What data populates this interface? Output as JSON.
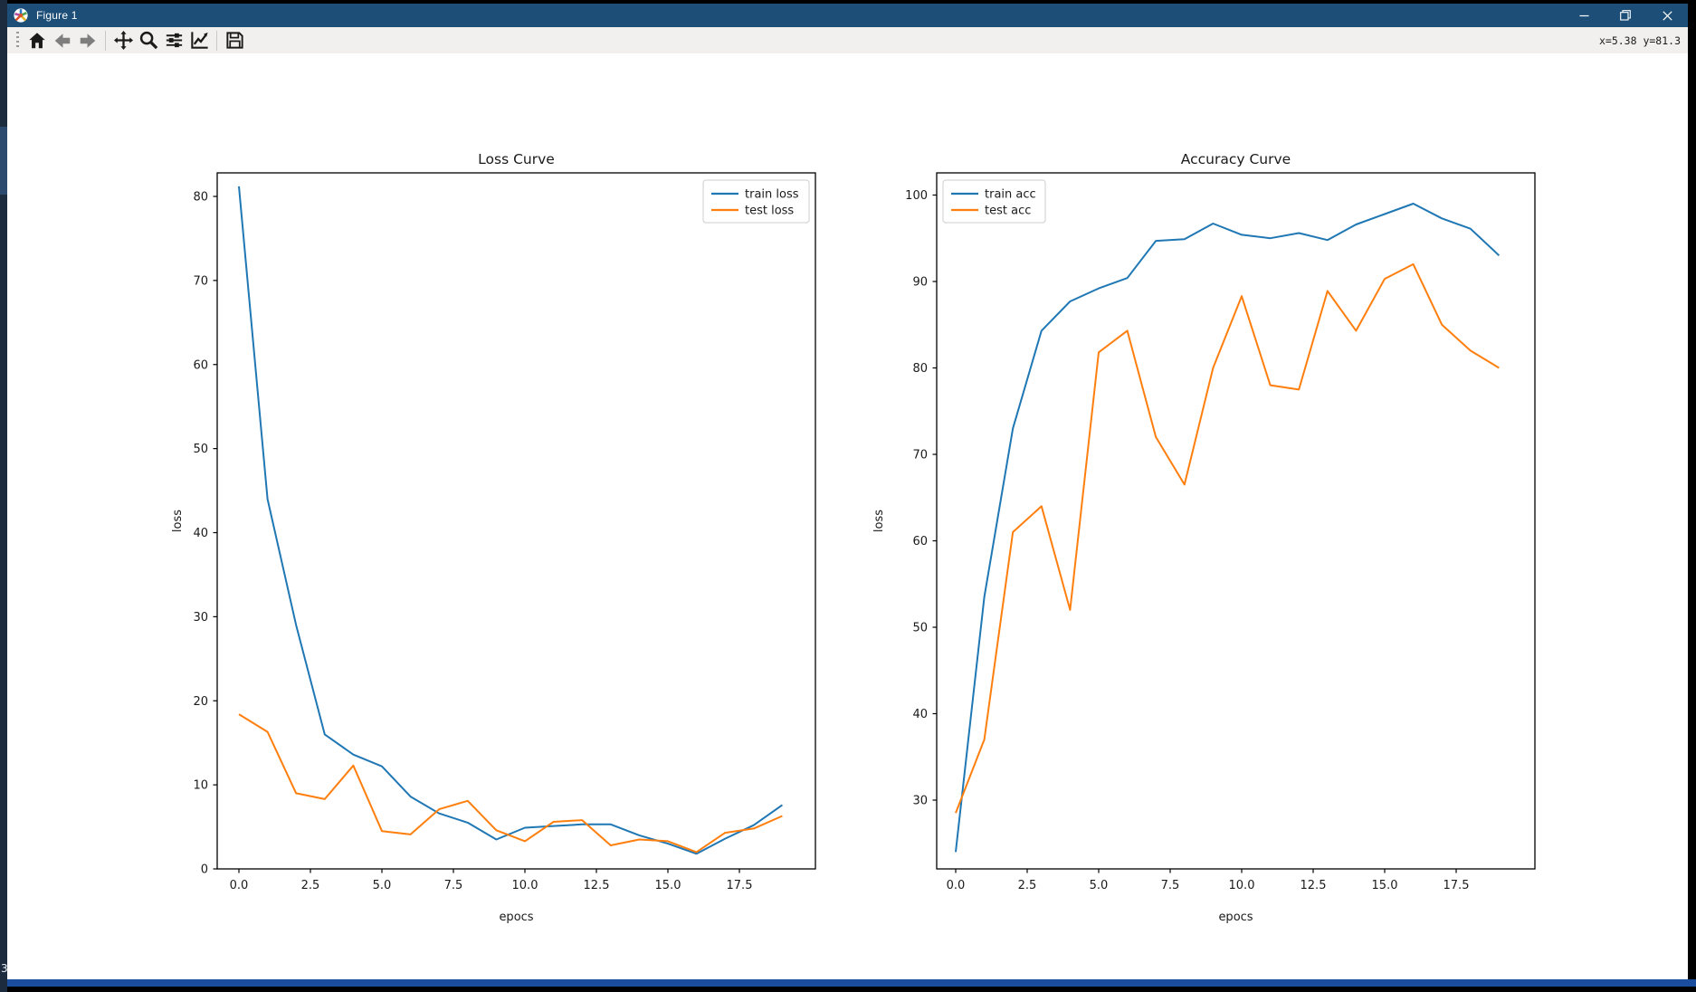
{
  "window": {
    "title": "Figure 1",
    "icon": "matplotlib-logo",
    "controls": {
      "minimize": "minimize",
      "restore": "restore",
      "close": "close"
    }
  },
  "toolbar": {
    "tools": [
      "home",
      "back",
      "forward",
      "pan",
      "zoom-to-rect",
      "configure-subplots",
      "edit-parameters",
      "save"
    ],
    "readout": "x=5.38 y=81.3"
  },
  "background_window": {
    "badge": "3"
  },
  "colors": {
    "titlebar": "#1d4e78",
    "toolbar_bg": "#f1f0ee",
    "train_color": "#1f77b4",
    "test_color": "#ff7f0e",
    "disabled_tool": "#7e7e7e",
    "active_tool": "#1a1a1a"
  },
  "chart_data": [
    {
      "type": "line",
      "title": "Loss Curve",
      "xlabel": "epocs",
      "ylabel": "loss",
      "legend_position": "upper right",
      "x": [
        0,
        1,
        2,
        3,
        4,
        5,
        6,
        7,
        8,
        9,
        10,
        11,
        12,
        13,
        14,
        15,
        16,
        17,
        18,
        19
      ],
      "series": [
        {
          "name": "train loss",
          "color": "#1f77b4",
          "values": [
            81.2,
            44.0,
            29.0,
            16.0,
            13.6,
            12.2,
            8.6,
            6.6,
            5.5,
            3.5,
            4.9,
            5.1,
            5.3,
            5.3,
            4.0,
            3.0,
            1.8,
            3.6,
            5.2,
            7.6
          ]
        },
        {
          "name": "test loss",
          "color": "#ff7f0e",
          "values": [
            18.4,
            16.3,
            9.0,
            8.3,
            12.3,
            4.5,
            4.1,
            7.1,
            8.1,
            4.6,
            3.3,
            5.6,
            5.8,
            2.8,
            3.5,
            3.3,
            2.0,
            4.3,
            4.8,
            6.3
          ]
        }
      ],
      "xticks": [
        [
          0,
          "0.0"
        ],
        [
          2.5,
          "2.5"
        ],
        [
          5,
          "5.0"
        ],
        [
          7.5,
          "7.5"
        ],
        [
          10,
          "10.0"
        ],
        [
          12.5,
          "12.5"
        ],
        [
          15,
          "15.0"
        ],
        [
          17.5,
          "17.5"
        ]
      ],
      "yticks": [
        [
          0,
          "0"
        ],
        [
          10,
          "10"
        ],
        [
          20,
          "20"
        ],
        [
          30,
          "30"
        ],
        [
          40,
          "40"
        ],
        [
          50,
          "50"
        ],
        [
          60,
          "60"
        ],
        [
          70,
          "70"
        ],
        [
          80,
          "80"
        ]
      ],
      "xlim": [
        -0.95,
        19.95
      ],
      "ylim": [
        -2,
        83
      ],
      "grid": false
    },
    {
      "type": "line",
      "title": "Accuracy Curve",
      "xlabel": "epocs",
      "ylabel": "loss",
      "legend_position": "upper left",
      "x": [
        0,
        1,
        2,
        3,
        4,
        5,
        6,
        7,
        8,
        9,
        10,
        11,
        12,
        13,
        14,
        15,
        16,
        17,
        18,
        19
      ],
      "series": [
        {
          "name": "train acc",
          "color": "#1f77b4",
          "values": [
            24.0,
            53.5,
            73.0,
            84.3,
            87.7,
            89.2,
            90.4,
            94.7,
            94.9,
            96.7,
            95.4,
            95.0,
            95.6,
            94.8,
            96.6,
            97.8,
            99.0,
            97.3,
            96.1,
            93.0
          ]
        },
        {
          "name": "test acc",
          "color": "#ff7f0e",
          "values": [
            28.5,
            37.0,
            61.0,
            64.0,
            52.0,
            81.8,
            84.3,
            72.0,
            66.5,
            80.0,
            88.3,
            78.0,
            77.5,
            88.9,
            84.3,
            90.3,
            92.0,
            85.0,
            82.0,
            80.0
          ]
        }
      ],
      "xticks": [
        [
          0,
          "0.0"
        ],
        [
          2.5,
          "2.5"
        ],
        [
          5,
          "5.0"
        ],
        [
          7.5,
          "7.5"
        ],
        [
          10,
          "10.0"
        ],
        [
          12.5,
          "12.5"
        ],
        [
          15,
          "15.0"
        ],
        [
          17.5,
          "17.5"
        ]
      ],
      "yticks": [
        [
          30,
          "30"
        ],
        [
          40,
          "40"
        ],
        [
          50,
          "50"
        ],
        [
          60,
          "60"
        ],
        [
          70,
          "70"
        ],
        [
          80,
          "80"
        ],
        [
          90,
          "90"
        ],
        [
          100,
          "100"
        ]
      ],
      "xlim": [
        -0.95,
        19.95
      ],
      "ylim": [
        22,
        102.5
      ],
      "grid": false
    }
  ]
}
